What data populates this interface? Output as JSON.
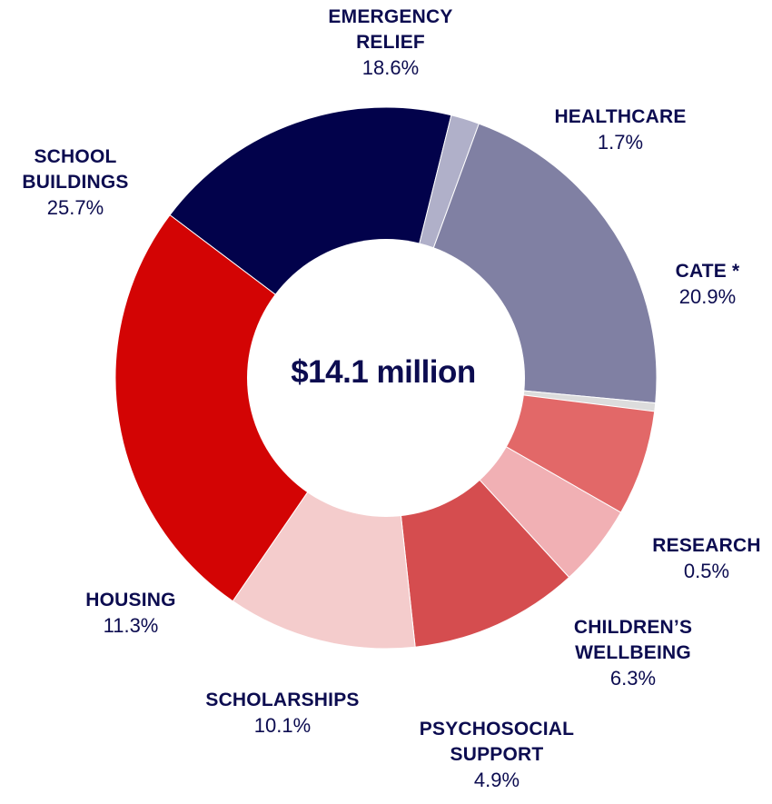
{
  "chart_data": {
    "type": "pie",
    "style": "donut",
    "center_label": "$14.1 million",
    "slices": [
      {
        "label": [
          "EMERGENCY",
          "RELIEF"
        ],
        "value": 18.6,
        "value_label": "18.6%",
        "color": "#02024b"
      },
      {
        "label": [
          "HEALTHCARE"
        ],
        "value": 1.7,
        "value_label": "1.7%",
        "color": "#b0b0c9"
      },
      {
        "label": [
          "CATE *"
        ],
        "value": 20.9,
        "value_label": "20.9%",
        "color": "#8080a3"
      },
      {
        "label": [
          "RESEARCH"
        ],
        "value": 0.5,
        "value_label": "0.5%",
        "color": "#dcdcdc"
      },
      {
        "label": [
          "CHILDREN’S",
          "WELLBEING"
        ],
        "value": 6.3,
        "value_label": "6.3%",
        "color": "#e26868"
      },
      {
        "label": [
          "PSYCHOSOCIAL",
          "SUPPORT"
        ],
        "value": 4.9,
        "value_label": "4.9%",
        "color": "#f1b0b4"
      },
      {
        "label": [
          "SCHOLARSHIPS"
        ],
        "value": 10.1,
        "value_label": "10.1%",
        "color": "#d54d4f"
      },
      {
        "label": [
          "HOUSING"
        ],
        "value": 11.3,
        "value_label": "11.3%",
        "color": "#f4cccc"
      },
      {
        "label": [
          "SCHOOL",
          "BUILDINGS"
        ],
        "value": 25.7,
        "value_label": "25.7%",
        "color": "#d30404"
      }
    ]
  }
}
